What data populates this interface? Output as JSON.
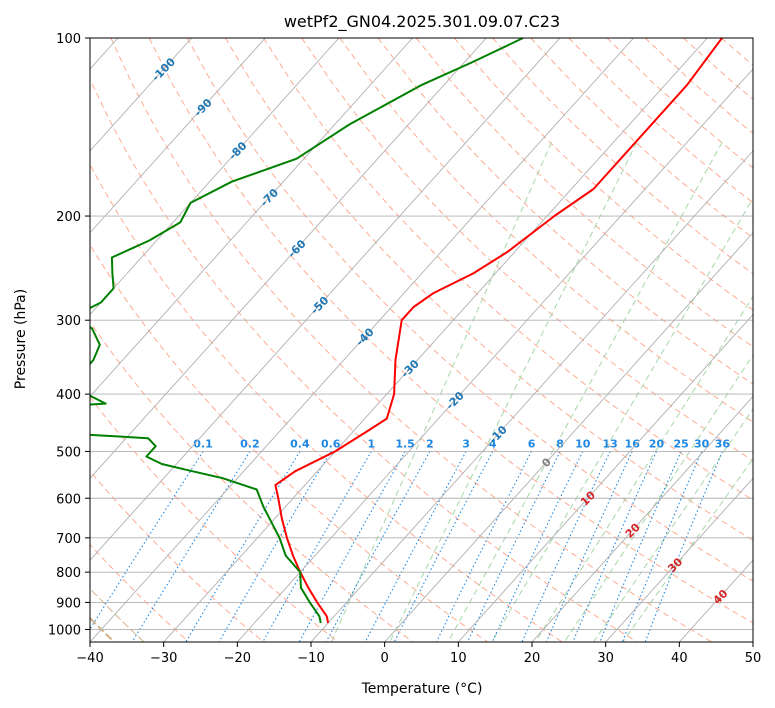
{
  "chart_data": {
    "type": "line",
    "title": "wetPf2_GN04.2025.301.09.07.C23",
    "xlabel": "Temperature (°C)",
    "ylabel": "Pressure (hPa)",
    "xlim": [
      -40,
      50
    ],
    "ylim": [
      1050,
      100
    ],
    "y_scale": "log",
    "x_ticks": [
      -40,
      -30,
      -20,
      -10,
      0,
      10,
      20,
      30,
      40,
      50
    ],
    "x_tick_labels": [
      "−40",
      "−30",
      "−20",
      "−10",
      "0",
      "10",
      "20",
      "30",
      "40",
      "50"
    ],
    "y_ticks": [
      100,
      200,
      300,
      400,
      500,
      600,
      700,
      800,
      900,
      1000
    ],
    "y_tick_labels": [
      "100",
      "200",
      "300",
      "400",
      "500",
      "600",
      "700",
      "800",
      "900",
      "1000"
    ],
    "grid": true,
    "series": [
      {
        "color": "#ff0000",
        "points": [
          [
            100,
            -28
          ],
          [
            120,
            -27
          ],
          [
            150,
            -27
          ],
          [
            180,
            -27
          ],
          [
            200,
            -29
          ],
          [
            230,
            -31
          ],
          [
            250,
            -33
          ],
          [
            270,
            -36
          ],
          [
            285,
            -37
          ],
          [
            300,
            -37
          ],
          [
            350,
            -33
          ],
          [
            400,
            -29
          ],
          [
            440,
            -27
          ],
          [
            460,
            -28
          ],
          [
            500,
            -30
          ],
          [
            540,
            -33
          ],
          [
            570,
            -34
          ],
          [
            600,
            -32
          ],
          [
            650,
            -29
          ],
          [
            700,
            -26
          ],
          [
            750,
            -23
          ],
          [
            800,
            -20
          ],
          [
            850,
            -17
          ],
          [
            900,
            -14
          ],
          [
            950,
            -11
          ],
          [
            975,
            -10
          ]
        ]
      },
      {
        "color": "#008000",
        "points": [
          [
            100,
            -55
          ],
          [
            110,
            -59
          ],
          [
            120,
            -63
          ],
          [
            140,
            -68
          ],
          [
            160,
            -71
          ],
          [
            175,
            -77
          ],
          [
            190,
            -80
          ],
          [
            205,
            -79
          ],
          [
            220,
            -81
          ],
          [
            235,
            -84
          ],
          [
            250,
            -82
          ],
          [
            265,
            -80
          ],
          [
            280,
            -80
          ],
          [
            295,
            -82
          ],
          [
            310,
            -78
          ],
          [
            330,
            -75
          ],
          [
            350,
            -74
          ],
          [
            370,
            -74
          ],
          [
            395,
            -72
          ],
          [
            415,
            -67
          ],
          [
            425,
            -80
          ],
          [
            458,
            -80
          ],
          [
            475,
            -57
          ],
          [
            490,
            -55
          ],
          [
            510,
            -55
          ],
          [
            525,
            -52
          ],
          [
            540,
            -47
          ],
          [
            555,
            -42
          ],
          [
            580,
            -36
          ],
          [
            620,
            -33
          ],
          [
            700,
            -27
          ],
          [
            750,
            -24
          ],
          [
            800,
            -20
          ],
          [
            850,
            -18
          ],
          [
            900,
            -15
          ],
          [
            950,
            -12
          ],
          [
            975,
            -11
          ]
        ]
      }
    ],
    "isotherm_labels": [
      "-100",
      "-90",
      "-80",
      "-70",
      "-60",
      "-50",
      "-40",
      "-30",
      "-20",
      "-10",
      "0",
      "10",
      "20",
      "30",
      "40"
    ],
    "mixing_ratio_labels": [
      "0.1",
      "0.2",
      "0.4",
      "0.6",
      "1",
      "1.5",
      "2",
      "3",
      "4",
      "6",
      "8",
      "10",
      "13",
      "16",
      "20",
      "25",
      "30",
      "36"
    ],
    "colors": {
      "isotherm_cold": "#1f77b4",
      "isotherm_zero": "#7f7f7f",
      "isotherm_warm": "#d62728",
      "mixing_ratio": "#1e88e5",
      "dry_adiabat": "#ffab91",
      "moist_adiabat": "#a5d6a7",
      "aux_curve": "#d2b48c",
      "grid": "#b0b0b0"
    }
  }
}
